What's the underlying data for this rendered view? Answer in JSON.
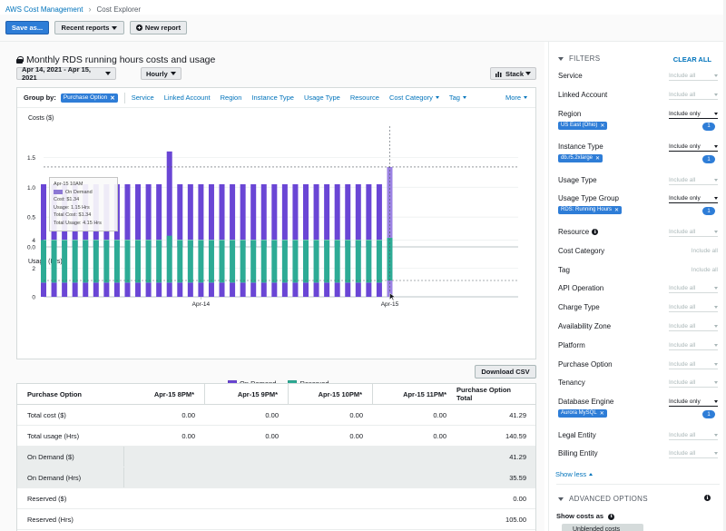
{
  "breadcrumb": {
    "root": "AWS Cost Management",
    "current": "Cost Explorer"
  },
  "toolbar": {
    "save_as": "Save as...",
    "recent_reports": "Recent reports",
    "new_report": "New report"
  },
  "report": {
    "title": "Monthly RDS running hours costs and usage",
    "date_range": "Apr 14, 2021 - Apr 15, 2021",
    "granularity": "Hourly",
    "chart_style": "Stack"
  },
  "group_by": {
    "label": "Group by:",
    "selected": "Purchase Option",
    "options": [
      "Service",
      "Linked Account",
      "Region",
      "Instance Type",
      "Usage Type",
      "Resource"
    ],
    "dropdowns": [
      "Cost Category",
      "Tag"
    ],
    "more": "More"
  },
  "tooltip": {
    "time": "Apr-15 10AM",
    "series": "On Demand",
    "cost": "Cost: $1.34",
    "usage": "Usage: 1.15 Hrs",
    "total_cost": "Total Cost: $1.34",
    "total_usage": "Total Usage: 4.15 Hrs"
  },
  "legend": {
    "on_demand": "On Demand",
    "reserved": "Reserved"
  },
  "colors": {
    "on_demand": "#6a46d5",
    "on_demand_highlight": "#9b82e3",
    "reserved": "#2dab95",
    "accent": "#2e7dd7"
  },
  "download_csv": "Download CSV",
  "chart_data": [
    {
      "type": "bar",
      "ylabel": "Costs ($)",
      "yticks": [
        "0.0",
        "0.5",
        "1.0",
        "1.5"
      ],
      "ylim": [
        0,
        1.75
      ],
      "x_tick_labels": [
        "Apr-14",
        "Apr-15"
      ],
      "series": [
        {
          "name": "On Demand",
          "values": [
            1.05,
            1.05,
            1.05,
            1.05,
            1.05,
            1.05,
            1.05,
            1.05,
            1.05,
            1.05,
            1.05,
            1.05,
            1.6,
            1.05,
            1.05,
            1.05,
            1.05,
            1.05,
            1.05,
            1.05,
            1.05,
            1.05,
            1.05,
            1.05,
            1.05,
            1.05,
            1.05,
            1.05,
            1.05,
            1.05,
            1.05,
            1.05,
            1.05,
            1.34
          ]
        }
      ],
      "highlight_index": 33,
      "reference_line": 1.34
    },
    {
      "type": "bar",
      "ylabel": "Usage (Hrs)",
      "yticks": [
        "0",
        "2",
        "4"
      ],
      "ylim": [
        0,
        4.6
      ],
      "x_tick_labels": [
        "Apr-14",
        "Apr-15"
      ],
      "series": [
        {
          "name": "On Demand",
          "values": [
            1,
            1,
            1,
            1,
            1,
            1,
            1,
            1,
            1,
            1,
            1,
            1,
            1,
            1,
            1,
            1,
            1,
            1,
            1,
            1,
            1,
            1,
            1,
            1,
            1,
            1,
            1,
            1,
            1,
            1,
            1,
            1,
            1,
            1.15
          ]
        },
        {
          "name": "Reserved",
          "values": [
            3,
            3,
            3,
            3,
            3,
            3,
            3,
            3,
            3,
            3,
            3,
            3,
            3.3,
            3,
            3,
            3,
            3,
            3,
            3,
            3,
            3,
            3,
            3,
            3,
            3,
            3,
            3,
            3,
            3,
            3,
            3,
            3,
            3,
            3
          ]
        }
      ],
      "highlight_index": 33,
      "reference_line": 1.15
    }
  ],
  "table": {
    "columns": [
      "Purchase Option",
      "Apr-15 8PM*",
      "Apr-15 9PM*",
      "Apr-15 10PM*",
      "Apr-15 11PM*",
      "Purchase Option Total"
    ],
    "rows": [
      {
        "label": "Total cost ($)",
        "values": [
          "0.00",
          "0.00",
          "0.00",
          "0.00",
          "41.29"
        ],
        "shaded": false
      },
      {
        "label": "Total usage (Hrs)",
        "values": [
          "0.00",
          "0.00",
          "0.00",
          "0.00",
          "140.59"
        ],
        "shaded": false
      },
      {
        "label": "On Demand ($)",
        "values": [
          "",
          "",
          "",
          "",
          "41.29"
        ],
        "shaded": true
      },
      {
        "label": "On Demand (Hrs)",
        "values": [
          "",
          "",
          "",
          "",
          "35.59"
        ],
        "shaded": true
      },
      {
        "label": "Reserved ($)",
        "values": [
          "",
          "",
          "",
          "",
          "0.00"
        ],
        "shaded": false
      },
      {
        "label": "Reserved (Hrs)",
        "values": [
          "",
          "",
          "",
          "",
          "105.00"
        ],
        "shaded": false
      }
    ]
  },
  "filters": {
    "title": "FILTERS",
    "clear_all": "CLEAR ALL",
    "include_all": "Include all",
    "include_only": "Include only",
    "items": [
      {
        "name": "Service",
        "mode": "include_all_dd"
      },
      {
        "name": "Linked Account",
        "mode": "include_all_dd"
      },
      {
        "name": "Region",
        "mode": "include_only",
        "token": "US East (Ohio)",
        "count": "1"
      },
      {
        "name": "Instance Type",
        "mode": "include_only",
        "token": "db.r5.2xlarge",
        "count": "1"
      },
      {
        "name": "Usage Type",
        "mode": "include_all_dd"
      },
      {
        "name": "Usage Type Group",
        "mode": "include_only",
        "token": "RDS: Running Hours",
        "count": "1"
      },
      {
        "name": "Resource",
        "mode": "include_all_dd",
        "info": true
      },
      {
        "name": "Cost Category",
        "mode": "include_all_plain"
      },
      {
        "name": "Tag",
        "mode": "include_all_plain"
      },
      {
        "name": "API Operation",
        "mode": "include_all_dd"
      },
      {
        "name": "Charge Type",
        "mode": "include_all_dd"
      },
      {
        "name": "Availability Zone",
        "mode": "include_all_dd"
      },
      {
        "name": "Platform",
        "mode": "include_all_dd"
      },
      {
        "name": "Purchase Option",
        "mode": "include_all_dd"
      },
      {
        "name": "Tenancy",
        "mode": "include_all_dd"
      },
      {
        "name": "Database Engine",
        "mode": "include_only",
        "token": "Aurora MySQL",
        "count": "1"
      },
      {
        "name": "Legal Entity",
        "mode": "include_all_dd"
      },
      {
        "name": "Billing Entity",
        "mode": "include_all_dd"
      }
    ],
    "show_less": "Show less"
  },
  "advanced": {
    "title": "ADVANCED OPTIONS",
    "show_costs_as": "Show costs as",
    "cost_type": "Unblended costs"
  }
}
